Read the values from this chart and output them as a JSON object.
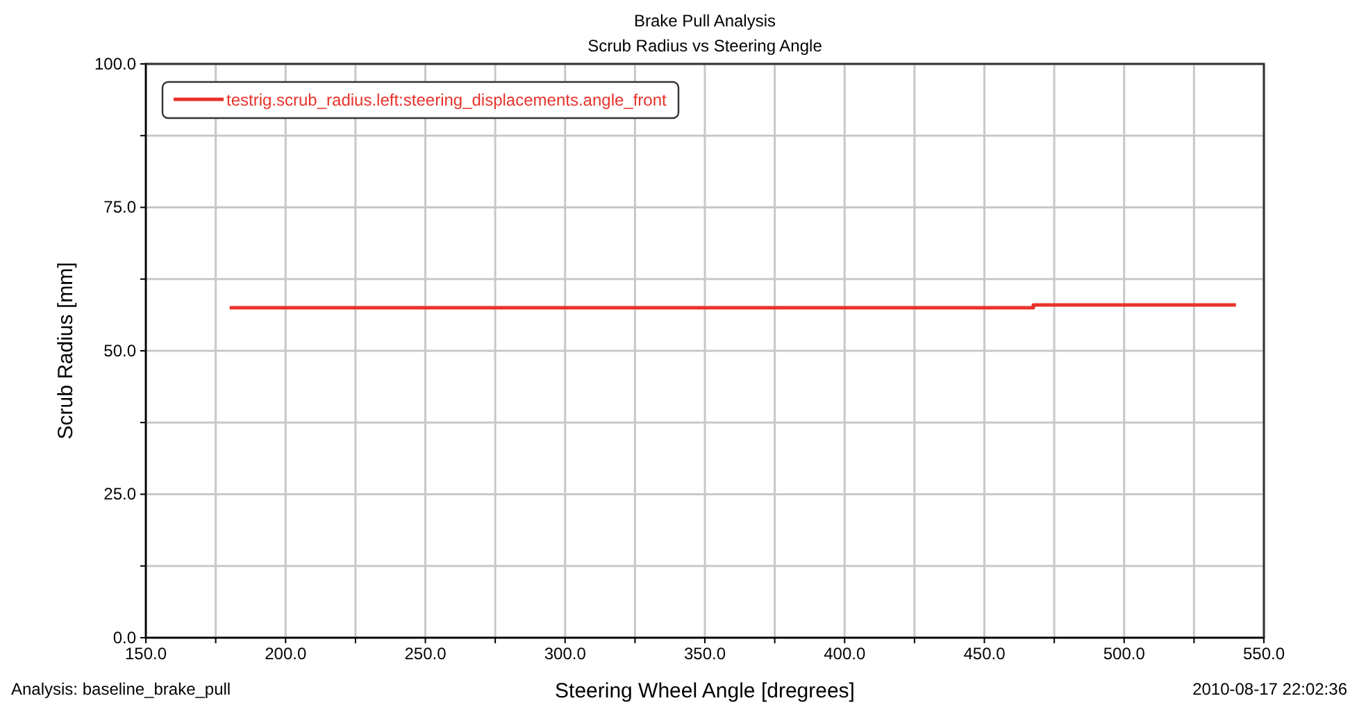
{
  "chart_data": {
    "type": "line",
    "title": "Brake Pull Analysis",
    "subtitle": "Scrub Radius vs Steering Angle",
    "xlabel": "Steering Wheel Angle [dregrees]",
    "ylabel": "Scrub Radius [mm]",
    "annotations": [
      "Analysis:  baseline_brake_pull",
      "2010-08-17 22:02:36"
    ],
    "series": [
      {
        "name": "testrig.scrub_radius.left:steering_displacements.angle_front",
        "color": "#e8322a",
        "x": [
          180,
          467.5,
          467.5,
          540
        ],
        "values": [
          57.5,
          57.5,
          58,
          58
        ]
      }
    ],
    "xlim": [
      150,
      550
    ],
    "xticks": [
      {
        "value": 150,
        "label": "150.0"
      },
      {
        "value": 175,
        "label": null
      },
      {
        "value": 200,
        "label": "200.0"
      },
      {
        "value": 225,
        "label": null
      },
      {
        "value": 250,
        "label": "250.0"
      },
      {
        "value": 275,
        "label": null
      },
      {
        "value": 300,
        "label": "300.0"
      },
      {
        "value": 325,
        "label": null
      },
      {
        "value": 350,
        "label": "350.0"
      },
      {
        "value": 375,
        "label": null
      },
      {
        "value": 400,
        "label": "400.0"
      },
      {
        "value": 425,
        "label": null
      },
      {
        "value": 450,
        "label": "450.0"
      },
      {
        "value": 475,
        "label": null
      },
      {
        "value": 500,
        "label": "500.0"
      },
      {
        "value": 525,
        "label": null
      },
      {
        "value": 550,
        "label": "550.0"
      }
    ],
    "ylim": [
      0,
      100
    ],
    "yticks": [
      {
        "value": 0,
        "label": "0.0"
      },
      {
        "value": 12.5,
        "label": null
      },
      {
        "value": 25,
        "label": "25.0"
      },
      {
        "value": 37.5,
        "label": null
      },
      {
        "value": 50,
        "label": "50.0"
      },
      {
        "value": 62.5,
        "label": null
      },
      {
        "value": 75,
        "label": "75.0"
      },
      {
        "value": 87.5,
        "label": null
      },
      {
        "value": 100,
        "label": "100.0"
      }
    ],
    "grid": true,
    "legend": "top left",
    "line_style": "solid",
    "marker": "none"
  }
}
